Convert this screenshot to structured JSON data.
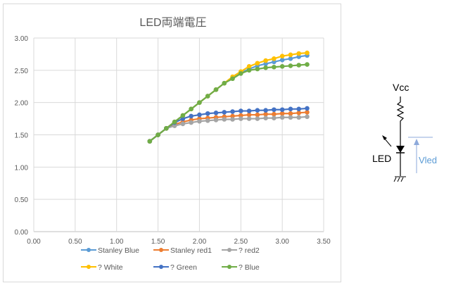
{
  "chart_data": {
    "type": "line",
    "title": "LED両端電圧",
    "xlim": [
      0,
      3.5
    ],
    "ylim": [
      0,
      3
    ],
    "xticks": [
      "0.00",
      "0.50",
      "1.00",
      "1.50",
      "2.00",
      "2.50",
      "3.00",
      "3.50"
    ],
    "yticks": [
      "0.00",
      "0.50",
      "1.00",
      "1.50",
      "2.00",
      "2.50",
      "3.00"
    ],
    "grid": true,
    "legend": "bottom",
    "x": [
      1.4,
      1.5,
      1.6,
      1.7,
      1.8,
      1.9,
      2.0,
      2.1,
      2.2,
      2.3,
      2.4,
      2.5,
      2.6,
      2.7,
      2.8,
      2.9,
      3.0,
      3.1,
      3.2,
      3.3
    ],
    "series": [
      {
        "name": "Stanley Blue",
        "color": "#5b9bd5",
        "values": [
          1.4,
          1.5,
          1.6,
          1.7,
          1.8,
          1.9,
          2.0,
          2.1,
          2.2,
          2.3,
          2.38,
          2.46,
          2.52,
          2.57,
          2.6,
          2.63,
          2.66,
          2.68,
          2.71,
          2.73
        ]
      },
      {
        "name": "Stanley red1",
        "color": "#ed7d31",
        "values": [
          1.4,
          1.5,
          1.6,
          1.66,
          1.7,
          1.73,
          1.75,
          1.76,
          1.77,
          1.78,
          1.79,
          1.8,
          1.81,
          1.81,
          1.82,
          1.82,
          1.83,
          1.83,
          1.84,
          1.85
        ]
      },
      {
        "name": "? red2",
        "color": "#a5a5a5",
        "values": [
          1.4,
          1.5,
          1.6,
          1.64,
          1.67,
          1.69,
          1.71,
          1.72,
          1.73,
          1.74,
          1.74,
          1.75,
          1.75,
          1.75,
          1.76,
          1.76,
          1.77,
          1.77,
          1.77,
          1.78
        ]
      },
      {
        "name": "? White",
        "color": "#ffc000",
        "values": [
          1.4,
          1.5,
          1.6,
          1.7,
          1.8,
          1.9,
          2.0,
          2.1,
          2.2,
          2.3,
          2.4,
          2.48,
          2.56,
          2.61,
          2.65,
          2.68,
          2.72,
          2.74,
          2.76,
          2.77
        ]
      },
      {
        "name": "? Green",
        "color": "#4472c4",
        "values": [
          1.4,
          1.5,
          1.6,
          1.69,
          1.75,
          1.79,
          1.81,
          1.83,
          1.84,
          1.85,
          1.86,
          1.87,
          1.87,
          1.88,
          1.88,
          1.89,
          1.89,
          1.9,
          1.9,
          1.91
        ]
      },
      {
        "name": "? Blue",
        "color": "#70ad47",
        "values": [
          1.4,
          1.5,
          1.6,
          1.7,
          1.8,
          1.9,
          2.0,
          2.1,
          2.2,
          2.3,
          2.37,
          2.45,
          2.5,
          2.52,
          2.54,
          2.55,
          2.56,
          2.57,
          2.58,
          2.59
        ]
      }
    ]
  },
  "circuit": {
    "vcc": "Vcc",
    "led": "LED",
    "vled": "Vled"
  }
}
